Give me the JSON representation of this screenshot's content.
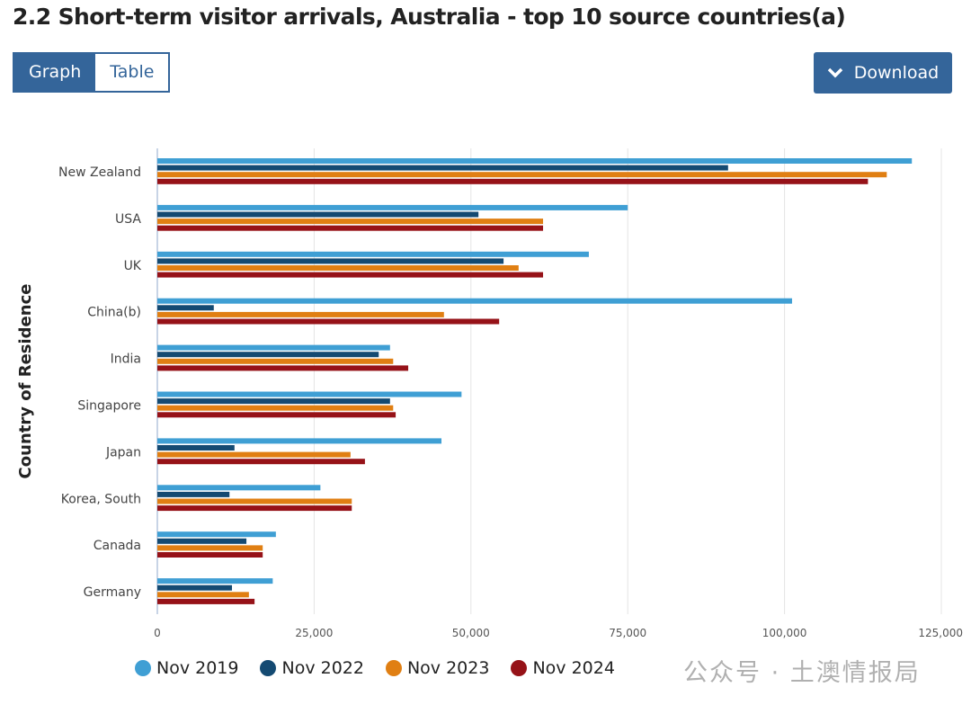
{
  "title": "2.2 Short-term visitor arrivals, Australia - top 10 source countries(a)",
  "toggle": {
    "graph": "Graph",
    "table": "Table"
  },
  "download": {
    "label": "Download",
    "icon": "chevron-down-icon"
  },
  "watermark": "公众号 · 土澳情报局",
  "chart_data": {
    "type": "bar",
    "orientation": "horizontal",
    "title": "2.2 Short-term visitor arrivals, Australia - top 10 source countries(a)",
    "xlabel": "",
    "ylabel": "Country of Residence",
    "xlim": [
      0,
      125000
    ],
    "xticks": [
      0,
      25000,
      50000,
      75000,
      100000,
      125000
    ],
    "xtick_labels": [
      "0",
      "25,000",
      "50,000",
      "75,000",
      "100,000",
      "125,000"
    ],
    "grid": true,
    "legend_position": "bottom",
    "categories": [
      "New Zealand",
      "USA",
      "UK",
      "China(b)",
      "India",
      "Singapore",
      "Japan",
      "Korea, South",
      "Canada",
      "Germany"
    ],
    "series": [
      {
        "name": "Nov 2019",
        "color": "#3f9fd4",
        "values": [
          120300,
          75000,
          68800,
          101200,
          37100,
          48500,
          45300,
          26000,
          18900,
          18400
        ]
      },
      {
        "name": "Nov 2022",
        "color": "#144a72",
        "values": [
          91000,
          51200,
          55200,
          9000,
          35300,
          37100,
          12300,
          11500,
          14200,
          11900
        ]
      },
      {
        "name": "Nov 2023",
        "color": "#e07f13",
        "values": [
          116300,
          61500,
          57600,
          45700,
          37600,
          37600,
          30800,
          31000,
          16800,
          14600
        ]
      },
      {
        "name": "Nov 2024",
        "color": "#961218",
        "values": [
          113300,
          61500,
          61500,
          54500,
          40000,
          38000,
          33100,
          31000,
          16800,
          15500
        ]
      }
    ]
  }
}
